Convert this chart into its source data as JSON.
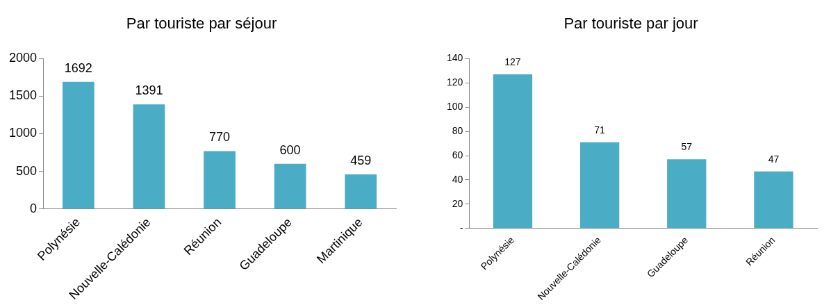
{
  "chart_data": [
    {
      "type": "bar",
      "title": "Par touriste par séjour",
      "categories": [
        "Polynésie",
        "Nouvelle-Calédonie",
        "Réunion",
        "Guadeloupe",
        "Martinique"
      ],
      "values": [
        1692,
        1391,
        770,
        600,
        459
      ],
      "color": "#4bacc6",
      "ylim": [
        0,
        2000
      ],
      "yticks": [
        0,
        500,
        1000,
        1500,
        2000
      ],
      "grid": false,
      "data_labels": true,
      "legend": false
    },
    {
      "type": "bar",
      "title": "Par touriste par jour",
      "categories": [
        "Polynésie",
        "Nouvelle-Calédonie",
        "Guadeloupe",
        "Réunion"
      ],
      "values": [
        127,
        71,
        57,
        47
      ],
      "color": "#4bacc6",
      "ylim": [
        0,
        140
      ],
      "yticks": [
        {
          "value": 0,
          "label": "-"
        },
        20,
        40,
        60,
        80,
        100,
        120,
        140
      ],
      "grid": false,
      "data_labels": true,
      "legend": false
    }
  ]
}
